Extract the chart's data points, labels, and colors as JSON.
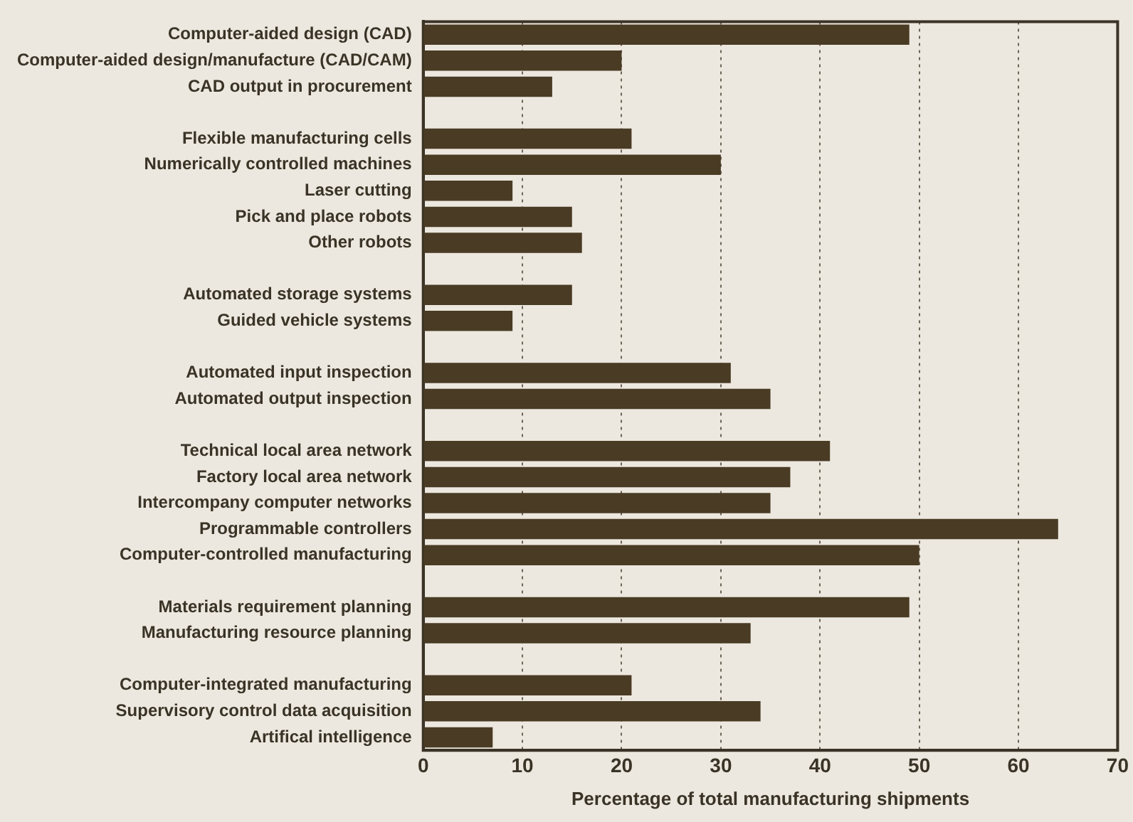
{
  "chart_data": {
    "type": "bar",
    "orientation": "horizontal",
    "xlabel": "Percentage of total manufacturing shipments",
    "categories": [
      "Computer-aided design (CAD)",
      "Computer-aided design/manufacture (CAD/CAM)",
      "CAD output in procurement",
      null,
      "Flexible manufacturing cells",
      "Numerically controlled machines",
      "Laser cutting",
      "Pick and place robots",
      "Other robots",
      null,
      "Automated storage systems",
      "Guided vehicle systems",
      null,
      "Automated input inspection",
      "Automated output inspection",
      null,
      "Technical local area network",
      "Factory local area network",
      "Intercompany computer networks",
      "Programmable controllers",
      "Computer-controlled manufacturing",
      null,
      "Materials requirement planning",
      "Manufacturing resource planning",
      null,
      "Computer-integrated manufacturing",
      "Supervisory control data acquisition",
      "Artifical intelligence"
    ],
    "values": [
      49,
      20,
      13,
      null,
      21,
      30,
      9,
      15,
      16,
      null,
      15,
      9,
      null,
      31,
      35,
      null,
      41,
      37,
      35,
      64,
      50,
      null,
      49,
      33,
      null,
      21,
      34,
      7
    ],
    "color": "#4a3b24",
    "xlim": [
      0,
      70
    ],
    "xticks": [
      0,
      10,
      20,
      30,
      40,
      50,
      60,
      70
    ],
    "grid": "x"
  }
}
